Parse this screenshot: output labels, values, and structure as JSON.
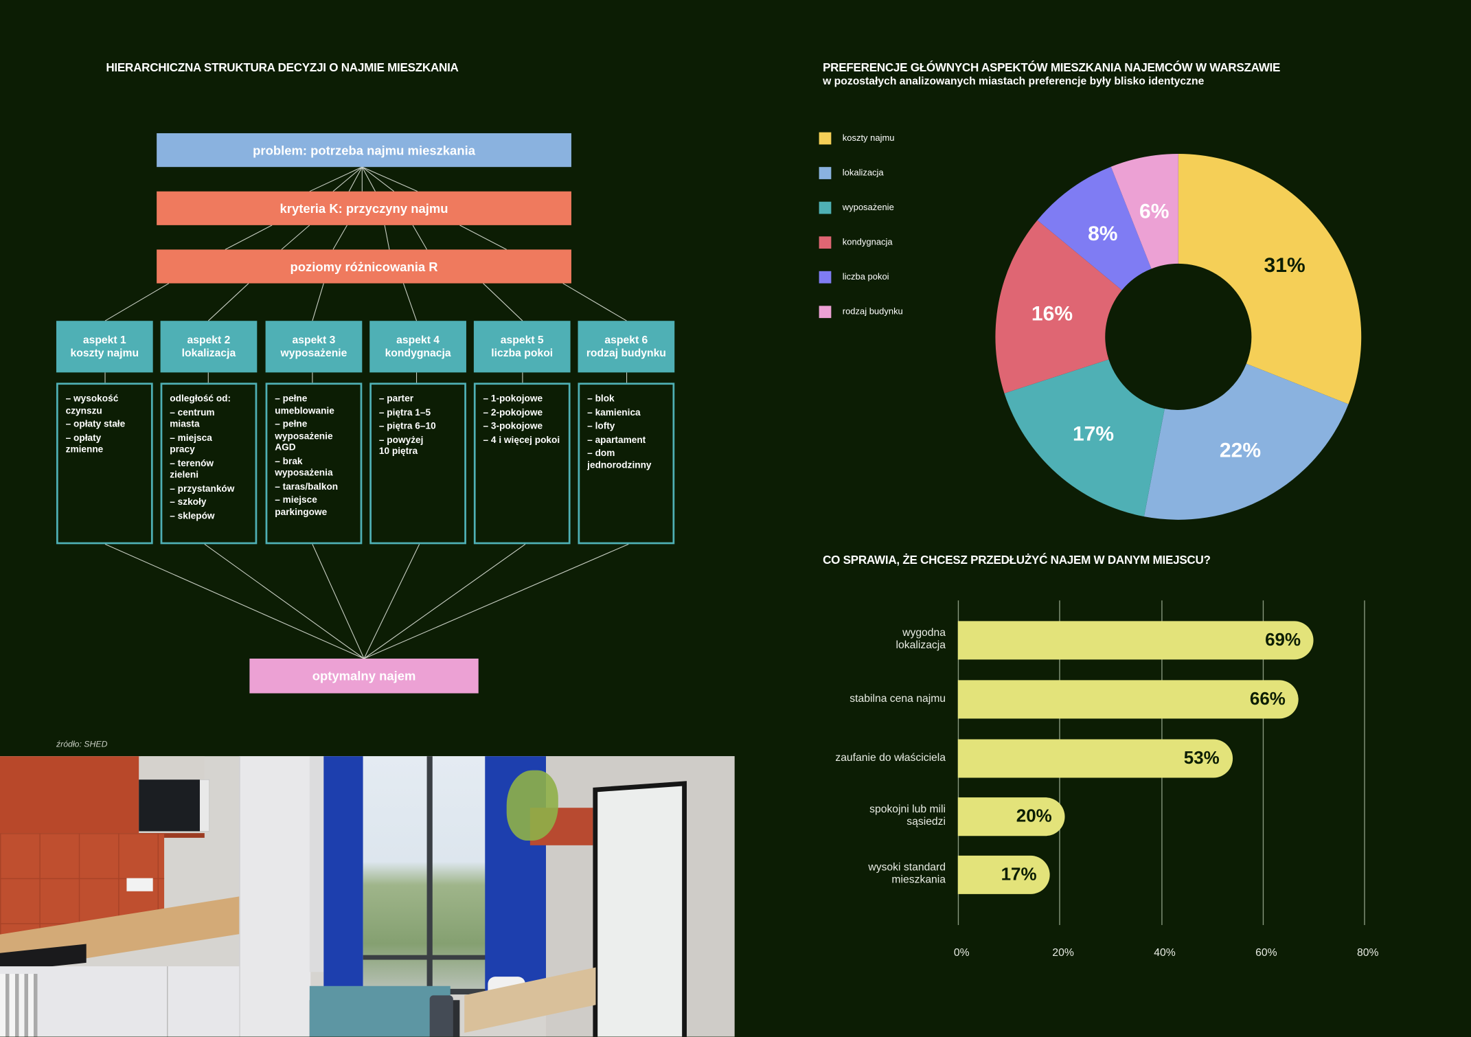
{
  "left": {
    "title": "HIERARCHICZNA STRUKTURA DECYZJI O NAJMIE MIESZKANIA",
    "problem": "problem: potrzeba najmu mieszkania",
    "criteria": "kryteria K: przyczyny najmu",
    "levels": "poziomy różnicowania R",
    "aspects": [
      {
        "title": "aspekt 1\nkoszty najmu",
        "items": [
          "– wysokość\n   czynszu",
          "– opłaty stałe",
          "– opłaty\n   zmienne"
        ]
      },
      {
        "title": "aspekt 2\nlokalizacja",
        "items": [
          "odległość od:",
          "– centrum\n   miasta",
          "– miejsca\n   pracy",
          "– terenów\n   zieleni",
          "– przystanków",
          "– szkoły",
          "– sklepów"
        ]
      },
      {
        "title": "aspekt 3\nwyposażenie",
        "items": [
          "– pełne\n   umeblowanie",
          "– pełne\n   wyposażenie\n   AGD",
          "– brak\n   wyposażenia",
          "– taras/balkon",
          "– miejsce\n   parkingowe"
        ]
      },
      {
        "title": "aspekt 4\nkondygnacja",
        "items": [
          "– parter",
          "– piętra 1–5",
          "– piętra 6–10",
          "– powyżej\n   10 piętra"
        ]
      },
      {
        "title": "aspekt 5\nliczba pokoi",
        "items": [
          "– 1-pokojowe",
          "– 2-pokojowe",
          "– 3-pokojowe",
          "– 4 i więcej pokoi"
        ]
      },
      {
        "title": "aspekt 6\nrodzaj budynku",
        "items": [
          "– blok",
          "– kamienica",
          "– lofty",
          "– apartament",
          "– dom\n   jednorodzinny"
        ]
      }
    ],
    "result": "optymalny najem",
    "source": "źródło: SHED"
  },
  "colors": {
    "background": "#0c1d04",
    "problem": "#8ab2df",
    "criteria": "#ef7a5e",
    "aspect": "#4fb0b5",
    "result": "#eca1d4",
    "bar": "#e3e37a"
  },
  "chart_data": [
    {
      "type": "pie",
      "title": "PREFERENCJE GŁÓWNYCH ASPEKTÓW MIESZKANIA NAJEMCÓW W WARSZAWIE",
      "subtitle": "w pozostałych analizowanych miastach preferencje były blisko identyczne",
      "legend_placement": "left",
      "slices": [
        {
          "label": "koszty najmu",
          "value": 31,
          "display": "31%",
          "color": "#f5cf57",
          "text_color": "#0c1d04"
        },
        {
          "label": "lokalizacja",
          "value": 22,
          "display": "22%",
          "color": "#8ab2df",
          "text_color": "#ffffff"
        },
        {
          "label": "wyposażenie",
          "value": 17,
          "display": "17%",
          "color": "#4fb0b5",
          "text_color": "#ffffff"
        },
        {
          "label": "kondygnacja",
          "value": 16,
          "display": "16%",
          "color": "#df6673",
          "text_color": "#ffffff"
        },
        {
          "label": "liczba pokoi",
          "value": 8,
          "display": "8%",
          "color": "#7f7cf3",
          "text_color": "#ffffff"
        },
        {
          "label": "rodzaj budynku",
          "value": 6,
          "display": "6%",
          "color": "#eca1d4",
          "text_color": "#ffffff"
        }
      ]
    },
    {
      "type": "bar",
      "orientation": "horizontal",
      "title": "CO SPRAWIA, ŻE CHCESZ PRZEDŁUŻYĆ NAJEM W DANYM MIEJSCU?",
      "categories": [
        "wygodna\nlokalizacja",
        "stabilna cena najmu",
        "zaufanie do właściciela",
        "spokojni lub mili\nsąsiedzi",
        "wysoki standard\nmieszkania"
      ],
      "values": [
        69,
        66,
        53,
        20,
        17
      ],
      "labels": [
        "69%",
        "66%",
        "53%",
        "20%",
        "17%"
      ],
      "xlim": [
        0,
        80
      ],
      "ticks": [
        0,
        20,
        40,
        60,
        80
      ],
      "tick_labels": [
        "0%",
        "20%",
        "40%",
        "60%",
        "80%"
      ],
      "grid": true
    }
  ]
}
